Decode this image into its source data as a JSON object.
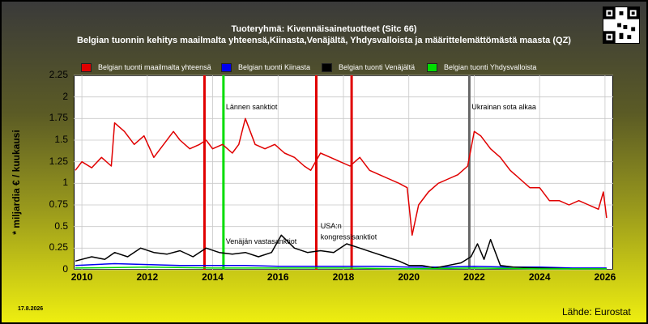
{
  "header": {
    "title_line1": "Tuoteryhmä: Kivennäisainetuotteet (Sitc 66)",
    "title_line2": "Belgian tuonnin kehitys maailmalta yhteensä,Kiinasta,Venäjältä, Yhdysvalloista ja määrittelemättömästä maasta (QZ)"
  },
  "footer": {
    "date": "17.8.2026",
    "source": "Lähde: Eurostat"
  },
  "chart_data": {
    "type": "line",
    "title": "Tuoteryhmä: Kivennäisainetuotteet (Sitc 66)",
    "xlabel": "",
    "ylabel": "* miljardia € / kuukausi",
    "xlim": [
      2009.75,
      2026.25
    ],
    "ylim": [
      0,
      2.25
    ],
    "xticks": [
      "2010",
      "2012",
      "2014",
      "2016",
      "2018",
      "2020",
      "2022",
      "2024",
      "2026"
    ],
    "yticks": [
      "0",
      "0.25",
      "0.5",
      "0.75",
      "1",
      "1.25",
      "1.5",
      "1.75",
      "2",
      "2.25"
    ],
    "grid": true,
    "legend_position": "top",
    "series": [
      {
        "name": "Belgian tuonti maailmalta yhteensä",
        "color": "#e00000",
        "x": [
          2009.8,
          2010.0,
          2010.3,
          2010.6,
          2010.9,
          2011.0,
          2011.3,
          2011.6,
          2011.9,
          2012.2,
          2012.5,
          2012.8,
          2013.0,
          2013.3,
          2013.6,
          2013.8,
          2014.0,
          2014.3,
          2014.6,
          2014.8,
          2015.0,
          2015.3,
          2015.6,
          2015.9,
          2016.2,
          2016.5,
          2016.8,
          2017.0,
          2017.3,
          2017.6,
          2017.9,
          2018.2,
          2018.5,
          2018.8,
          2019.1,
          2019.4,
          2019.7,
          2019.95,
          2020.1,
          2020.3,
          2020.6,
          2020.9,
          2021.2,
          2021.5,
          2021.8,
          2022.0,
          2022.2,
          2022.5,
          2022.8,
          2023.1,
          2023.4,
          2023.7,
          2024.0,
          2024.3,
          2024.6,
          2024.9,
          2025.2,
          2025.5,
          2025.8,
          2025.95,
          2026.05
        ],
        "values": [
          1.15,
          1.25,
          1.18,
          1.3,
          1.2,
          1.7,
          1.6,
          1.45,
          1.55,
          1.3,
          1.45,
          1.6,
          1.5,
          1.4,
          1.45,
          1.5,
          1.4,
          1.45,
          1.35,
          1.45,
          1.75,
          1.45,
          1.4,
          1.45,
          1.35,
          1.3,
          1.2,
          1.15,
          1.35,
          1.3,
          1.25,
          1.2,
          1.3,
          1.15,
          1.1,
          1.05,
          1.0,
          0.95,
          0.4,
          0.75,
          0.9,
          1.0,
          1.05,
          1.1,
          1.2,
          1.6,
          1.55,
          1.4,
          1.3,
          1.15,
          1.05,
          0.95,
          0.95,
          0.8,
          0.8,
          0.75,
          0.8,
          0.75,
          0.7,
          0.9,
          0.6
        ]
      },
      {
        "name": "Belgian tuonti Kiinasta",
        "color": "#0000ee",
        "x": [
          2009.8,
          2011.0,
          2012.0,
          2013.0,
          2014.0,
          2015.0,
          2016.0,
          2017.0,
          2018.0,
          2019.0,
          2020.0,
          2021.0,
          2022.0,
          2023.0,
          2024.0,
          2025.0,
          2026.05
        ],
        "values": [
          0.05,
          0.07,
          0.06,
          0.05,
          0.05,
          0.05,
          0.04,
          0.04,
          0.04,
          0.04,
          0.03,
          0.03,
          0.04,
          0.03,
          0.03,
          0.02,
          0.02
        ]
      },
      {
        "name": "Belgian tuonti Venäjältä",
        "color": "#000000",
        "x": [
          2009.8,
          2010.3,
          2010.7,
          2011.0,
          2011.4,
          2011.8,
          2012.2,
          2012.6,
          2013.0,
          2013.4,
          2013.8,
          2014.2,
          2014.6,
          2015.0,
          2015.4,
          2015.8,
          2016.1,
          2016.5,
          2016.9,
          2017.3,
          2017.7,
          2018.1,
          2018.5,
          2018.9,
          2019.3,
          2019.7,
          2020.0,
          2020.4,
          2020.8,
          2021.2,
          2021.6,
          2021.9,
          2022.1,
          2022.3,
          2022.5,
          2022.8,
          2023.2,
          2024.0,
          2025.0,
          2026.05
        ],
        "values": [
          0.1,
          0.15,
          0.12,
          0.2,
          0.15,
          0.25,
          0.2,
          0.18,
          0.22,
          0.15,
          0.25,
          0.2,
          0.18,
          0.2,
          0.15,
          0.2,
          0.4,
          0.25,
          0.2,
          0.22,
          0.2,
          0.3,
          0.25,
          0.2,
          0.15,
          0.1,
          0.05,
          0.05,
          0.02,
          0.05,
          0.08,
          0.15,
          0.3,
          0.12,
          0.35,
          0.05,
          0.03,
          0.02,
          0.01,
          0.01
        ]
      },
      {
        "name": "Belgian tuonti Yhdysvalloista",
        "color": "#00dd00",
        "x": [
          2009.8,
          2012.0,
          2014.0,
          2016.0,
          2018.0,
          2020.0,
          2022.0,
          2024.0,
          2026.05
        ],
        "values": [
          0.02,
          0.03,
          0.02,
          0.02,
          0.02,
          0.01,
          0.02,
          0.01,
          0.01
        ]
      }
    ],
    "events": [
      {
        "x": 2013.75,
        "color": "#e00000",
        "label": ""
      },
      {
        "x": 2014.33,
        "color": "#00dd00",
        "label": "Lännen sanktiot"
      },
      {
        "x": 2017.17,
        "color": "#e00000",
        "label": ""
      },
      {
        "x": 2018.25,
        "color": "#e00000",
        "label": ""
      },
      {
        "x": 2021.85,
        "color": "#666666",
        "label": "Ukrainan sota alkaa"
      }
    ],
    "annotations": [
      {
        "x": 2014.4,
        "y": 0.3,
        "label": "Venäjän vastasanktiot"
      },
      {
        "x": 2017.3,
        "y": 0.48,
        "label": "USA:n"
      },
      {
        "x": 2017.3,
        "y": 0.35,
        "label": "kongressisanktiot"
      }
    ]
  }
}
